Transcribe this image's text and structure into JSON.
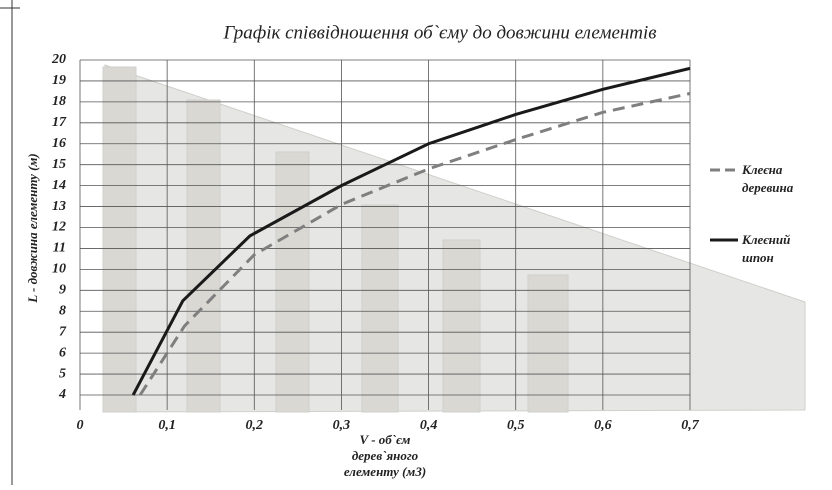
{
  "chart_data": {
    "type": "line",
    "title": "Графік співвідношення об`єму до довжини елементів",
    "x_label": "V - об`єм дерев`яного елементу (м3)",
    "y_label": "L - довжина елементу (м)",
    "xlim": [
      0,
      0.7
    ],
    "xticks": [
      0,
      {
        "value": 0.1,
        "label": "0,1"
      },
      {
        "value": 0.2,
        "label": "0,2"
      },
      {
        "value": 0.3,
        "label": "0,3"
      },
      {
        "value": 0.4,
        "label": "0,4"
      },
      {
        "value": 0.5,
        "label": "0,5"
      },
      {
        "value": 0.6,
        "label": "0,6"
      },
      {
        "value": 0.7,
        "label": "0,7"
      }
    ],
    "ylim": [
      4,
      20
    ],
    "yticks": [
      4,
      5,
      6,
      7,
      8,
      9,
      10,
      11,
      12,
      13,
      14,
      15,
      16,
      17,
      18,
      19,
      20
    ],
    "grid": true,
    "legend": "right",
    "series": [
      {
        "name": "Клеєна деревина",
        "color": "#7f7f7f",
        "dash": true,
        "x": [
          0.069,
          0.12,
          0.2,
          0.3,
          0.4,
          0.5,
          0.6,
          0.7
        ],
        "values": [
          4.0,
          7.3,
          10.7,
          13.1,
          14.8,
          16.2,
          17.5,
          18.4
        ]
      },
      {
        "name": "Клеєний шпон",
        "color": "#1a1a1a",
        "dash": false,
        "x": [
          0.061,
          0.118,
          0.195,
          0.3,
          0.4,
          0.5,
          0.6,
          0.7
        ],
        "values": [
          4.0,
          8.5,
          11.6,
          14.0,
          16.0,
          17.4,
          18.6,
          19.6
        ]
      }
    ]
  }
}
